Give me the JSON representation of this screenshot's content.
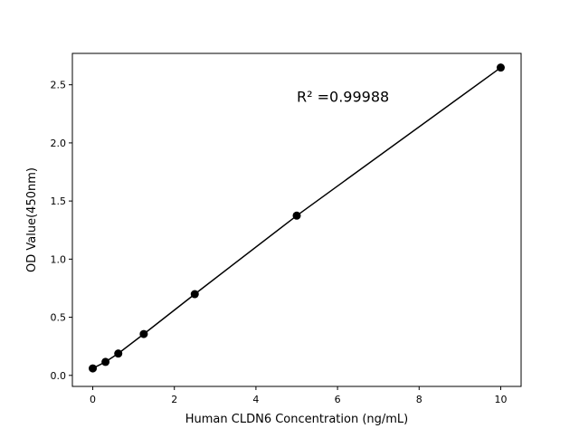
{
  "chart_data": {
    "type": "line",
    "title": "",
    "xlabel": "Human CLDN6 Concentration (ng/mL)",
    "ylabel": "OD Value(450nm)",
    "x": [
      0,
      0.3125,
      0.625,
      1.25,
      2.5,
      5,
      10
    ],
    "series": [
      {
        "values": [
          0.06,
          0.116,
          0.188,
          0.356,
          0.699,
          1.374,
          2.648
        ],
        "color": "#000000",
        "marker": "circle"
      }
    ],
    "xlim": [
      -0.5,
      10.5
    ],
    "ylim": [
      -0.095,
      2.77
    ],
    "xticks": [
      0,
      2,
      4,
      6,
      8,
      10
    ],
    "xtick_labels": [
      "0",
      "2",
      "4",
      "6",
      "8",
      "10"
    ],
    "yticks": [
      0.0,
      0.5,
      1.0,
      1.5,
      2.0,
      2.5
    ],
    "ytick_labels": [
      "0.0",
      "0.5",
      "1.0",
      "1.5",
      "2.0",
      "2.5"
    ],
    "grid": false,
    "annotation": {
      "text": "R² =0.99988",
      "x": 5,
      "y": 2.4
    }
  }
}
